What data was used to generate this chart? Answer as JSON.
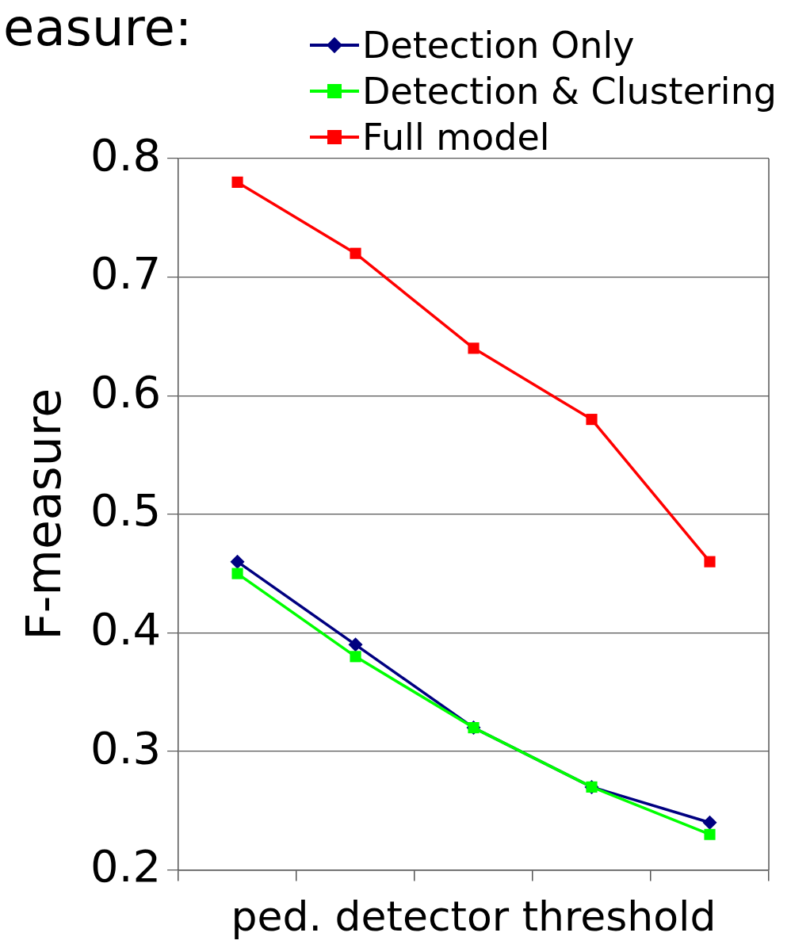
{
  "chart_data": {
    "type": "line",
    "title": "easure:",
    "xlabel": "ped. detector threshold",
    "ylabel": "F-measure",
    "categories": [
      null,
      null,
      null,
      null,
      null
    ],
    "series": [
      {
        "name": "Detection Only",
        "color": "#000080",
        "marker": "diamond",
        "values": [
          0.46,
          0.39,
          0.32,
          0.27,
          0.24
        ]
      },
      {
        "name": "Detection & Clustering",
        "color": "#00ff00",
        "marker": "square",
        "values": [
          0.45,
          0.38,
          0.32,
          0.27,
          0.23
        ]
      },
      {
        "name": "Full model",
        "color": "#ff0000",
        "marker": "square",
        "values": [
          0.78,
          0.72,
          0.64,
          0.58,
          0.46
        ]
      }
    ],
    "ylim": [
      0.2,
      0.8
    ],
    "yticks": [
      0.2,
      0.3,
      0.4,
      0.5,
      0.6,
      0.7,
      0.8
    ],
    "grid": "y",
    "legend": "top right"
  }
}
